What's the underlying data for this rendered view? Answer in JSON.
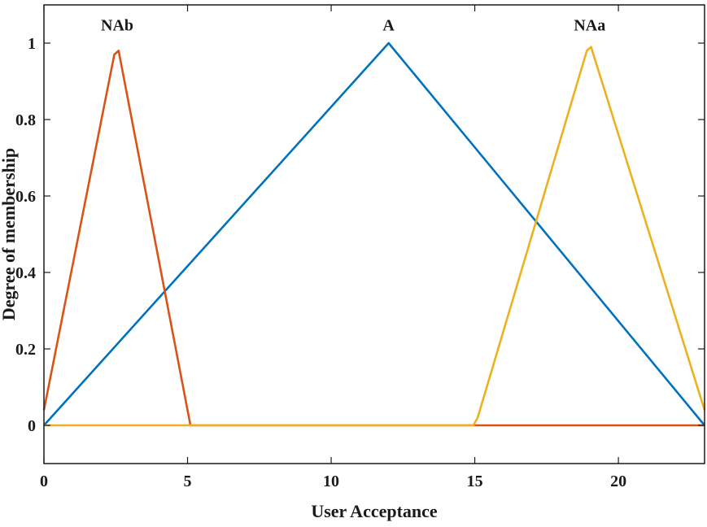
{
  "chart_data": {
    "type": "line",
    "xlabel": "User Acceptance",
    "ylabel": "Degree of membership",
    "xlim": [
      0,
      23
    ],
    "ylim": [
      -0.1,
      1.1
    ],
    "x_ticks": [
      0,
      5,
      10,
      15,
      20
    ],
    "y_ticks": [
      0,
      0.2,
      0.4,
      0.6,
      0.8,
      1
    ],
    "y_tick_labels": [
      "0",
      "0.2",
      "0.4",
      "0.6",
      "0.8",
      "1"
    ],
    "grid": false,
    "series": [
      {
        "name": "A",
        "color": "#0072BD",
        "points": [
          [
            0,
            0
          ],
          [
            12,
            1
          ],
          [
            23,
            0
          ]
        ]
      },
      {
        "name": "NAb",
        "color": "#D95319",
        "points": [
          [
            0,
            0.04
          ],
          [
            2.45,
            0.97
          ],
          [
            2.6,
            0.98
          ],
          [
            5.1,
            0
          ],
          [
            23,
            0
          ]
        ]
      },
      {
        "name": "NAa",
        "color": "#EDB120",
        "points": [
          [
            0,
            0
          ],
          [
            14.95,
            0
          ],
          [
            15.1,
            0.02
          ],
          [
            18.9,
            0.98
          ],
          [
            19.05,
            0.99
          ],
          [
            23,
            0.04
          ]
        ]
      }
    ],
    "annotations": [
      {
        "text": "NAb",
        "x": 2.55,
        "y": 1.05
      },
      {
        "text": "A",
        "x": 12,
        "y": 1.05
      },
      {
        "text": "NAa",
        "x": 19,
        "y": 1.05
      }
    ]
  }
}
